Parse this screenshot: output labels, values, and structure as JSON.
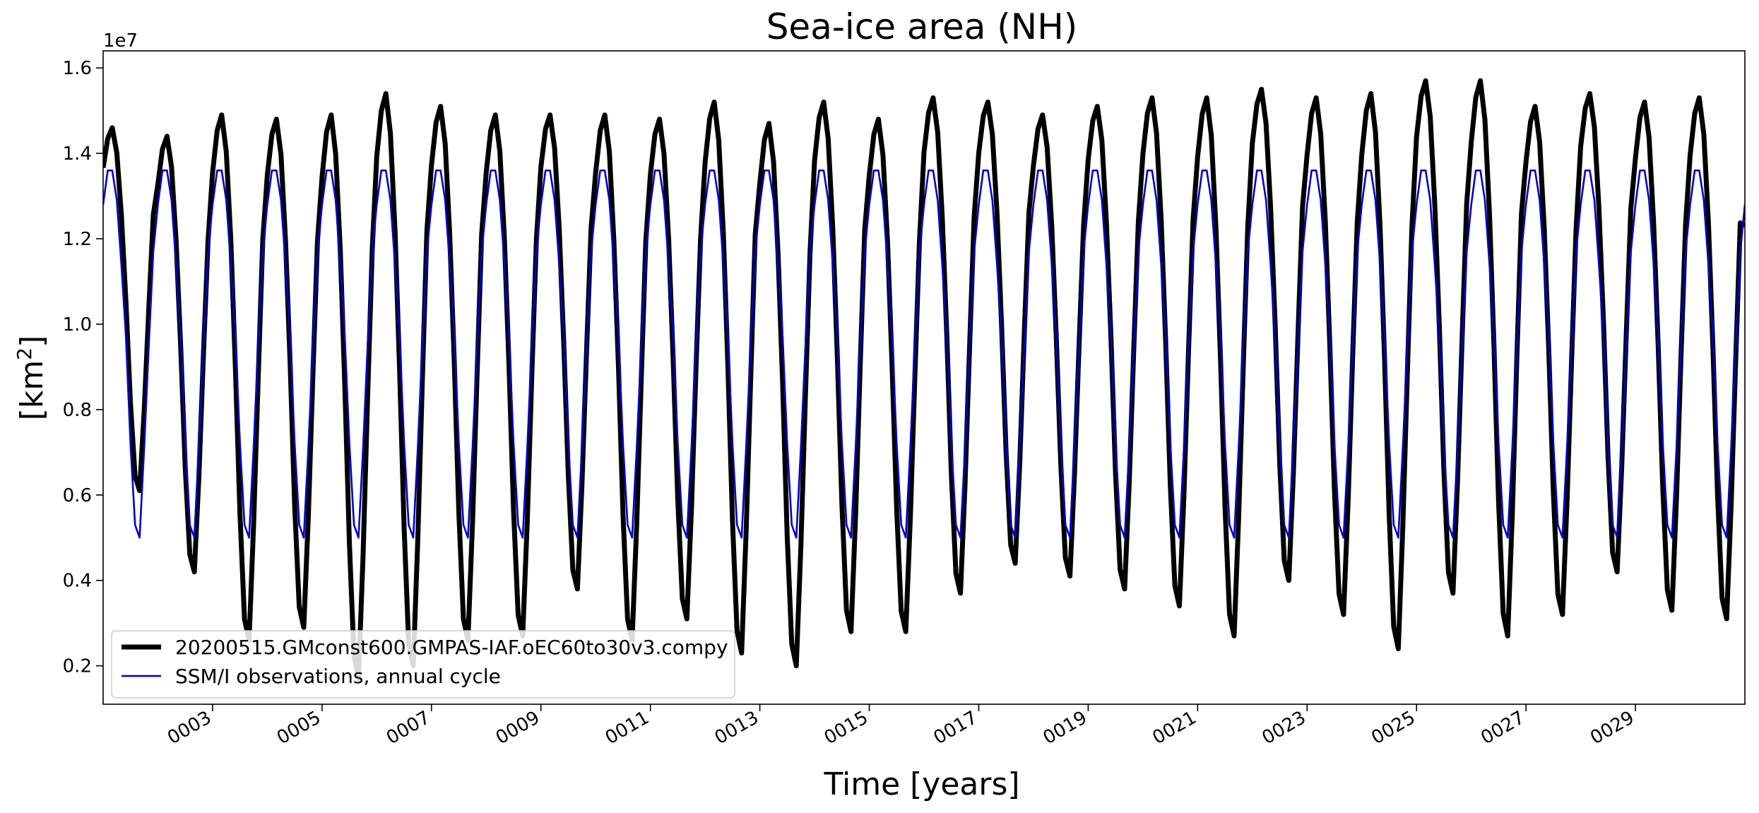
{
  "chart_data": {
    "type": "line",
    "title": "Sea-ice area (NH)",
    "xlabel": "Time [years]",
    "ylabel": "[km²]",
    "ylabel_base": "[km",
    "ylabel_sup": "2",
    "ylabel_end": "]",
    "y_offset_label": "1e7",
    "xlim": [
      1.0,
      31.0
    ],
    "ylim": [
      0.11,
      1.64
    ],
    "y_scale": 10000000,
    "grid": false,
    "legend_position": "lower-left",
    "x_ticks": [
      3,
      5,
      7,
      9,
      11,
      13,
      15,
      17,
      19,
      21,
      23,
      25,
      27,
      29
    ],
    "x_tick_labels": [
      "0003",
      "0005",
      "0007",
      "0009",
      "0011",
      "0013",
      "0015",
      "0017",
      "0019",
      "0021",
      "0023",
      "0025",
      "0027",
      "0029"
    ],
    "y_ticks": [
      0.2,
      0.4,
      0.6,
      0.8,
      1.0,
      1.2,
      1.4,
      1.6
    ],
    "y_tick_labels": [
      "0.2",
      "0.4",
      "0.6",
      "0.8",
      "1.0",
      "1.2",
      "1.4",
      "1.6"
    ],
    "series": [
      {
        "name": "20200515.GMconst600.GMPAS-IAF.oEC60to30v3.compy",
        "color": "#000000",
        "line_width": 3,
        "annual_max": [
          1.46,
          1.44,
          1.49,
          1.48,
          1.49,
          1.54,
          1.51,
          1.49,
          1.49,
          1.49,
          1.48,
          1.52,
          1.47,
          1.52,
          1.48,
          1.53,
          1.52,
          1.49,
          1.51,
          1.53,
          1.53,
          1.55,
          1.53,
          1.54,
          1.57,
          1.57,
          1.51,
          1.54,
          1.52,
          1.53
        ],
        "annual_min": [
          0.61,
          0.42,
          0.26,
          0.29,
          0.17,
          0.2,
          0.26,
          0.27,
          0.38,
          0.26,
          0.31,
          0.23,
          0.2,
          0.28,
          0.28,
          0.37,
          0.44,
          0.41,
          0.38,
          0.34,
          0.27,
          0.4,
          0.32,
          0.24,
          0.37,
          0.27,
          0.32,
          0.42,
          0.33,
          0.31
        ]
      },
      {
        "name": "SSM/I observations, annual cycle",
        "color": "#0000cc",
        "line_width": 1,
        "monthly_climatology": [
          1.28,
          1.36,
          1.36,
          1.29,
          1.14,
          0.97,
          0.72,
          0.53,
          0.5,
          0.71,
          0.95,
          1.17
        ]
      }
    ]
  }
}
